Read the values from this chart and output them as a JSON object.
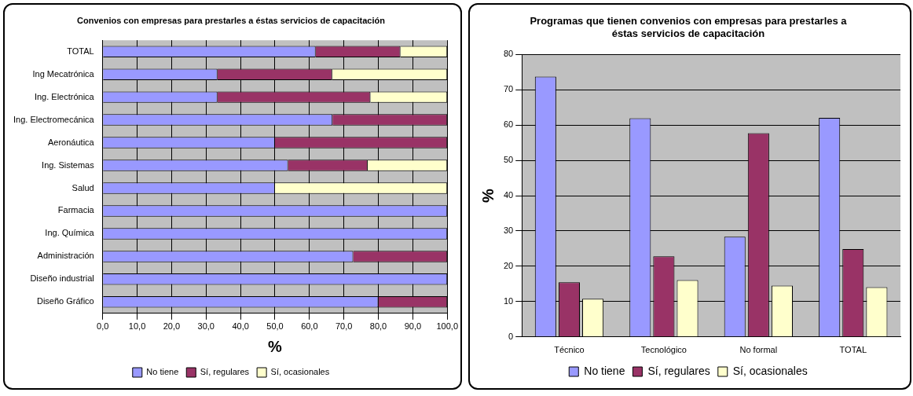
{
  "chart_data": [
    {
      "type": "bar",
      "orientation": "horizontal",
      "stacked": true,
      "title": "Convenios con empresas para prestarles a éstas servicios de capacitación",
      "xlabel": "%",
      "categories": [
        "TOTAL",
        "Ing Mecatrónica",
        "Ing. Electrónica",
        "Ing. Electromecánica",
        "Aeronáutica",
        "Ing. Sistemas",
        "Salud",
        "Farmacia",
        "Ing. Química",
        "Administración",
        "Diseño industrial",
        "Diseño Gráfico"
      ],
      "series": [
        {
          "name": "No tiene",
          "color": "#9999ff",
          "values": [
            61.8,
            33.3,
            33.3,
            66.7,
            50,
            53.8,
            50,
            100,
            100,
            72.7,
            100,
            80
          ]
        },
        {
          "name": "Sí, regulares",
          "color": "#993366",
          "values": [
            24.6,
            33.3,
            44.4,
            33.3,
            50,
            23.1,
            0,
            0,
            0,
            27.3,
            0,
            20
          ]
        },
        {
          "name": "Sí, ocasionales",
          "color": "#ffffcc",
          "values": [
            13.6,
            33.4,
            22.3,
            0,
            0,
            23.1,
            50,
            0,
            0,
            0,
            0,
            0
          ]
        }
      ],
      "xlim": [
        0,
        100
      ],
      "xticks": [
        {
          "value": 0,
          "label": "0,0"
        },
        {
          "value": 10,
          "label": "10,0"
        },
        {
          "value": 20,
          "label": "20,0"
        },
        {
          "value": 30,
          "label": "30,0"
        },
        {
          "value": 40,
          "label": "40,0"
        },
        {
          "value": 50,
          "label": "50,0"
        },
        {
          "value": 60,
          "label": "60,0"
        },
        {
          "value": 70,
          "label": "70,0"
        },
        {
          "value": 80,
          "label": "80,0"
        },
        {
          "value": 90,
          "label": "90,0"
        },
        {
          "value": 100,
          "label": "100,0"
        }
      ],
      "grid": "x",
      "legend": "bottom"
    },
    {
      "type": "bar",
      "title": "Programas que tienen convenios con empresas para prestarles a éstas servicios de capacitación",
      "ylabel": "%",
      "categories": [
        "Técnico",
        "Tecnológico",
        "No formal",
        "TOTAL"
      ],
      "series": [
        {
          "name": "No tiene",
          "color": "#9999ff",
          "values": [
            73.7,
            61.9,
            28.4,
            62
          ]
        },
        {
          "name": "Sí, regulares",
          "color": "#993366",
          "values": [
            15.5,
            22.8,
            57.7,
            24.9
          ]
        },
        {
          "name": "Sí, ocasionales",
          "color": "#ffffcc",
          "values": [
            10.8,
            16.1,
            14.5,
            14.1
          ]
        }
      ],
      "ylim": [
        0,
        80
      ],
      "yticks": [
        0,
        10,
        20,
        30,
        40,
        50,
        60,
        70,
        80
      ],
      "grid": "y",
      "legend": "bottom"
    }
  ]
}
